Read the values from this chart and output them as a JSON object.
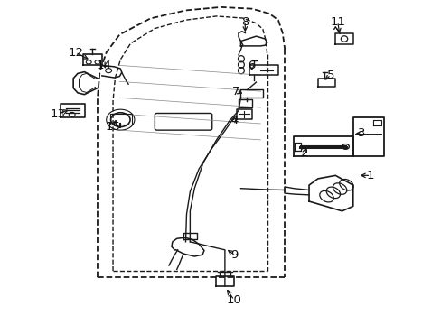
{
  "bg_color": "#ffffff",
  "fig_width": 4.89,
  "fig_height": 3.6,
  "dpi": 100,
  "line_color": "#1a1a1a",
  "text_color": "#111111",
  "font_size": 9.5,
  "labels": {
    "8": [
      0.555,
      0.935,
      0.555,
      0.895
    ],
    "11": [
      0.765,
      0.935,
      0.77,
      0.89
    ],
    "6": [
      0.57,
      0.8,
      0.57,
      0.775
    ],
    "5": [
      0.75,
      0.77,
      0.73,
      0.75
    ],
    "7": [
      0.535,
      0.72,
      0.555,
      0.71
    ],
    "4": [
      0.53,
      0.63,
      0.54,
      0.645
    ],
    "3": [
      0.82,
      0.59,
      0.8,
      0.59
    ],
    "2": [
      0.69,
      0.53,
      0.695,
      0.555
    ],
    "1": [
      0.84,
      0.46,
      0.81,
      0.46
    ],
    "9": [
      0.53,
      0.215,
      0.51,
      0.235
    ],
    "10": [
      0.53,
      0.075,
      0.51,
      0.115
    ],
    "12": [
      0.17,
      0.84,
      0.205,
      0.815
    ],
    "14": [
      0.235,
      0.8,
      0.24,
      0.785
    ],
    "13": [
      0.13,
      0.65,
      0.16,
      0.665
    ],
    "15": [
      0.255,
      0.61,
      0.265,
      0.64
    ]
  }
}
